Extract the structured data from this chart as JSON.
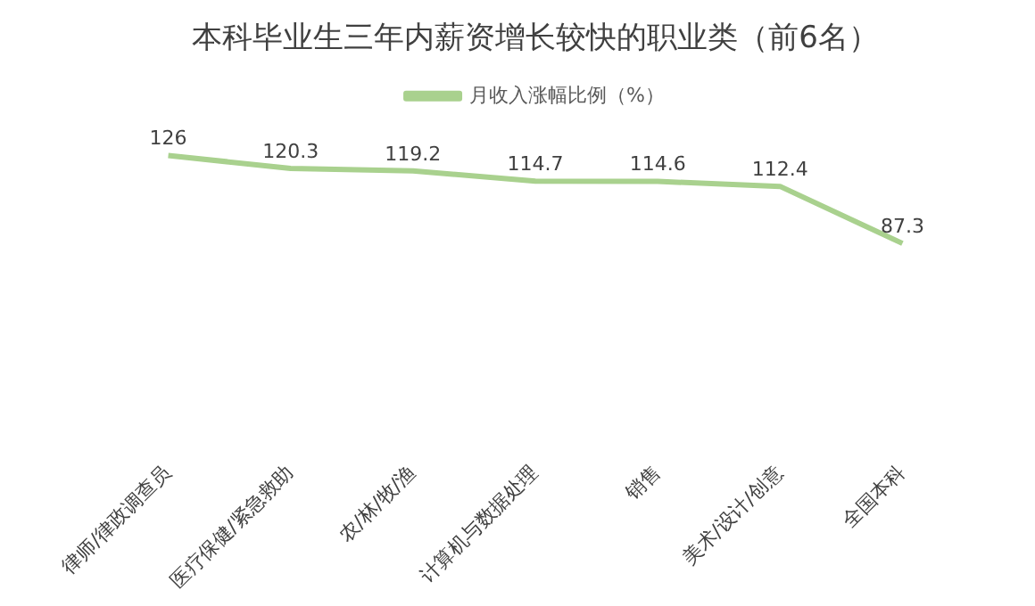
{
  "chart_data": {
    "type": "line",
    "title": "本科毕业生三年内薪资增长较快的职业类（前6名）",
    "categories": [
      "律师/律政调查员",
      "医疗保健/紧急救助",
      "农/林/牧/渔",
      "计算机与数据处理",
      "销售",
      "美术/设计/创意",
      "全国本科"
    ],
    "series": [
      {
        "name": "月收入涨幅比例（%）",
        "color": "#a9d18e",
        "values": [
          126,
          120.3,
          119.2,
          114.7,
          114.6,
          112.4,
          87.3
        ]
      }
    ],
    "data_labels": true,
    "legend": "top",
    "grid": false,
    "marker": "none",
    "line_style": "solid"
  }
}
